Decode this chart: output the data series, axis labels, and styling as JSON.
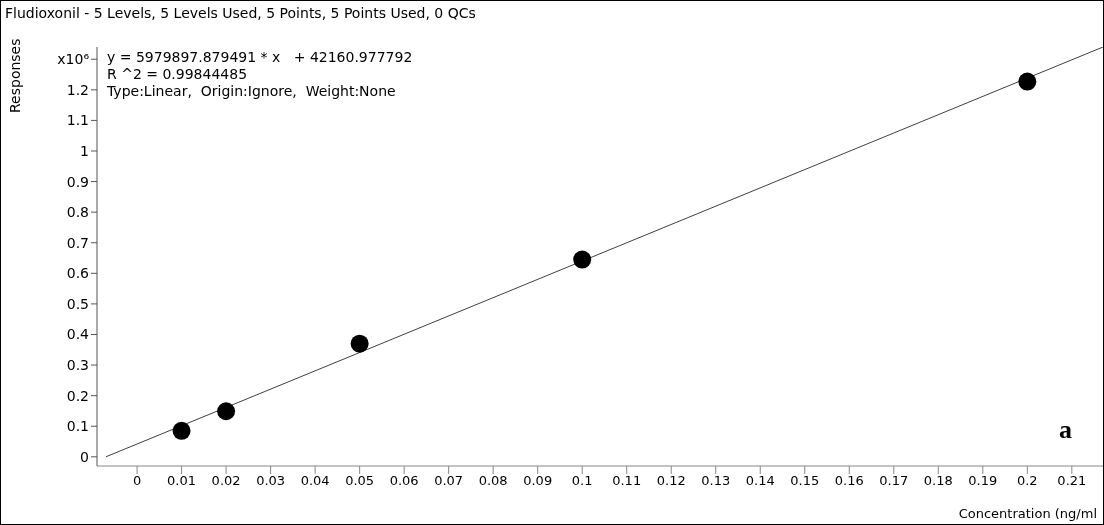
{
  "chart_data": {
    "type": "scatter",
    "title": "Fludioxonil - 5 Levels, 5 Levels Used, 5 Points, 5 Points Used, 0 QCs",
    "xlabel": "Concentration (ng/ml",
    "ylabel": "Responses",
    "x": [
      0.01,
      0.02,
      0.05,
      0.1,
      0.2
    ],
    "series": [
      {
        "color": "#000000",
        "values": [
          0.085,
          0.149,
          0.37,
          0.645,
          1.227
        ]
      },
      {
        "type": "line",
        "marker": "none",
        "color": "#404040",
        "x": [
          -0.007,
          0.217
        ],
        "values": [
          0,
          1.34
        ]
      }
    ],
    "marker": "circle",
    "xlim": [
      -0.009,
      0.217
    ],
    "ylim": [
      -0.03,
      1.34
    ],
    "xticks": [
      0,
      0.01,
      0.02,
      0.03,
      0.04,
      0.05,
      0.06,
      0.07,
      0.08,
      0.09,
      0.1,
      0.11,
      0.12,
      0.13,
      0.14,
      0.15,
      0.16,
      0.17,
      0.18,
      0.19,
      0.2,
      0.21
    ],
    "yticks": [
      0,
      0.1,
      0.2,
      0.3,
      0.4,
      0.5,
      0.6,
      0.7,
      0.8,
      0.9,
      1,
      1.1,
      1.2,
      {
        "value": 1.3,
        "label": "x10⁶"
      }
    ],
    "annotations": [
      "y = 5979897.879491 * x   + 42160.977792",
      "R ^2 = 0.99844485",
      "Type:Linear,  Origin:Ignore,  Weight:None",
      "a"
    ]
  }
}
